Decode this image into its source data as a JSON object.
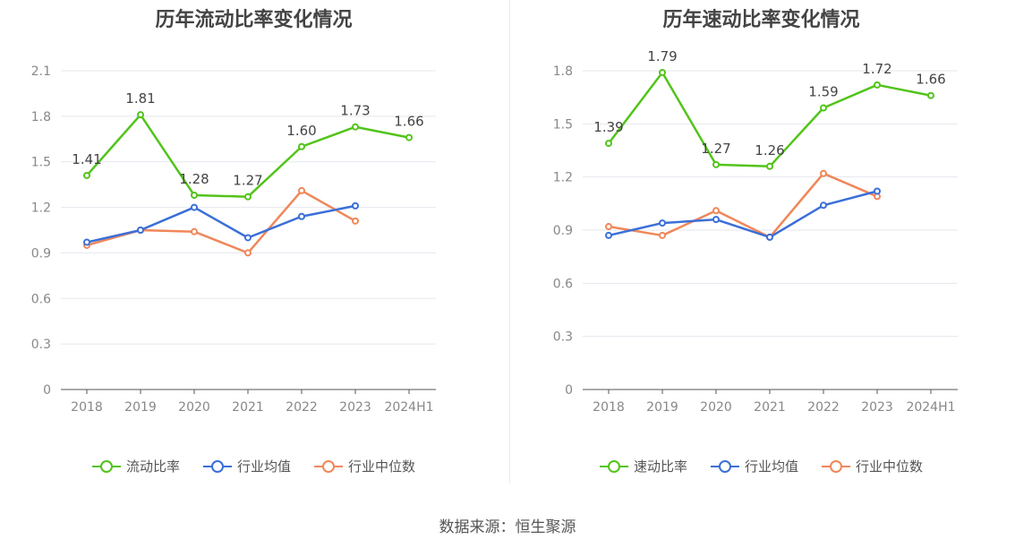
{
  "source_text": "数据来源：恒生聚源",
  "chart_data": [
    {
      "type": "line",
      "title": "历年流动比率变化情况",
      "categories": [
        "2018",
        "2019",
        "2020",
        "2021",
        "2022",
        "2023",
        "2024H1"
      ],
      "ylim": [
        0,
        2.1
      ],
      "yticks": [
        "0",
        "0.3",
        "0.6",
        "0.9",
        "1.2",
        "1.5",
        "1.8",
        "2.1"
      ],
      "grid": true,
      "legend_position": "bottom",
      "series": [
        {
          "name": "流动比率",
          "color": "#52c41a",
          "values": [
            1.41,
            1.81,
            1.28,
            1.27,
            1.6,
            1.73,
            1.66
          ],
          "labels": [
            "1.41",
            "1.81",
            "1.28",
            "1.27",
            "1.60",
            "1.73",
            "1.66"
          ]
        },
        {
          "name": "行业均值",
          "color": "#3b6fd8",
          "values": [
            0.97,
            1.05,
            1.2,
            1.0,
            1.14,
            1.21,
            null
          ]
        },
        {
          "name": "行业中位数",
          "color": "#f0875a",
          "values": [
            0.95,
            1.05,
            1.04,
            0.9,
            1.31,
            1.11,
            null
          ]
        }
      ]
    },
    {
      "type": "line",
      "title": "历年速动比率变化情况",
      "categories": [
        "2018",
        "2019",
        "2020",
        "2021",
        "2022",
        "2023",
        "2024H1"
      ],
      "ylim": [
        0,
        1.8
      ],
      "yticks": [
        "0",
        "0.3",
        "0.6",
        "0.9",
        "1.2",
        "1.5",
        "1.8"
      ],
      "grid": true,
      "legend_position": "bottom",
      "series": [
        {
          "name": "速动比率",
          "color": "#52c41a",
          "values": [
            1.39,
            1.79,
            1.27,
            1.26,
            1.59,
            1.72,
            1.66
          ],
          "labels": [
            "1.39",
            "1.79",
            "1.27",
            "1.26",
            "1.59",
            "1.72",
            "1.66"
          ]
        },
        {
          "name": "行业均值",
          "color": "#3b6fd8",
          "values": [
            0.87,
            0.94,
            0.96,
            0.86,
            1.04,
            1.12,
            null
          ]
        },
        {
          "name": "行业中位数",
          "color": "#f0875a",
          "values": [
            0.92,
            0.87,
            1.01,
            0.86,
            1.22,
            1.09,
            null
          ]
        }
      ]
    }
  ]
}
